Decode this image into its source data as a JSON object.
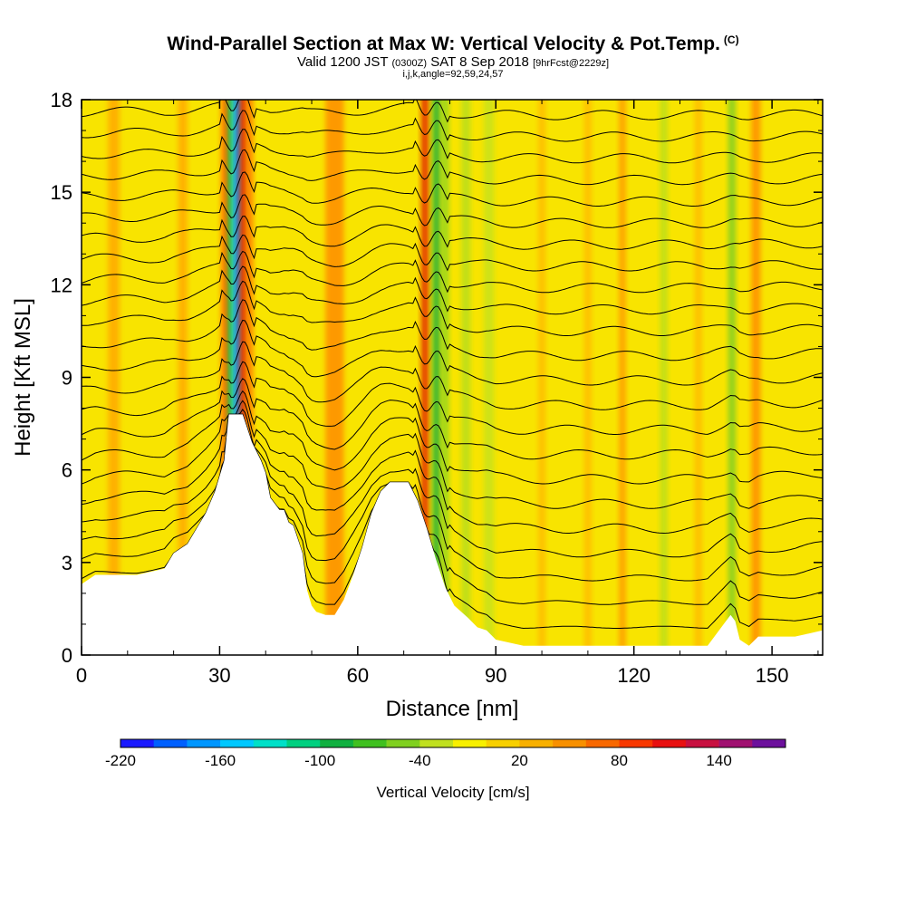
{
  "header": {
    "title": "Wind-Parallel Section at Max W: Vertical Velocity & Pot.Temp.",
    "title_mark": "(C)",
    "valid_prefix": "Valid 1200 JST",
    "valid_zulu": "(0300Z)",
    "valid_date": "SAT 8 Sep 2018",
    "forecast": "[9hrFcst@2229z]",
    "grid_info": "i,j,k,angle=92,59,24,57"
  },
  "chart_data": {
    "type": "heatmap",
    "xlabel": "Distance [nm]",
    "ylabel": "Height [Kft MSL]",
    "xlim": [
      0,
      161
    ],
    "ylim": [
      0,
      18
    ],
    "x_ticks": [
      "0",
      "30",
      "60",
      "90",
      "120",
      "150"
    ],
    "x_tick_values": [
      0,
      30,
      60,
      90,
      120,
      150
    ],
    "y_ticks": [
      "0",
      "3",
      "6",
      "9",
      "12",
      "15",
      "18"
    ],
    "y_tick_values": [
      0,
      3,
      6,
      9,
      12,
      15,
      18
    ],
    "background_fill": "#f8e400",
    "terrain": [
      [
        0,
        2.3
      ],
      [
        3,
        2.6
      ],
      [
        6,
        2.6
      ],
      [
        12,
        2.6
      ],
      [
        18,
        2.8
      ],
      [
        20,
        3.3
      ],
      [
        23,
        3.6
      ],
      [
        25,
        4.1
      ],
      [
        27,
        4.6
      ],
      [
        29,
        5.3
      ],
      [
        31,
        6.3
      ],
      [
        32,
        7.8
      ],
      [
        35,
        7.8
      ],
      [
        37,
        6.9
      ],
      [
        39,
        6.3
      ],
      [
        40,
        5.9
      ],
      [
        41,
        5.1
      ],
      [
        43,
        4.7
      ],
      [
        44,
        4.7
      ],
      [
        45,
        4.3
      ],
      [
        46,
        4.2
      ],
      [
        48,
        3.3
      ],
      [
        49,
        2.1
      ],
      [
        50,
        1.6
      ],
      [
        51,
        1.4
      ],
      [
        53,
        1.3
      ],
      [
        55,
        1.3
      ],
      [
        57,
        1.8
      ],
      [
        59,
        2.6
      ],
      [
        61,
        3.5
      ],
      [
        63,
        4.6
      ],
      [
        65,
        5.3
      ],
      [
        67,
        5.6
      ],
      [
        69,
        5.6
      ],
      [
        71,
        5.6
      ],
      [
        73,
        5.0
      ],
      [
        75,
        4.1
      ],
      [
        77,
        3.1
      ],
      [
        79,
        2.2
      ],
      [
        81,
        1.6
      ],
      [
        84,
        1.2
      ],
      [
        86,
        0.9
      ],
      [
        88,
        0.8
      ],
      [
        90,
        0.5
      ],
      [
        93,
        0.4
      ],
      [
        96,
        0.3
      ],
      [
        110,
        0.3
      ],
      [
        125,
        0.3
      ],
      [
        136,
        0.3
      ],
      [
        140,
        1.1
      ],
      [
        141,
        1.3
      ],
      [
        142,
        1.1
      ],
      [
        143,
        0.5
      ],
      [
        145,
        0.3
      ],
      [
        147,
        0.6
      ],
      [
        151,
        0.6
      ],
      [
        155,
        0.6
      ],
      [
        158,
        0.7
      ],
      [
        161,
        0.8
      ]
    ],
    "velocity_bands": [
      {
        "x": 31.5,
        "w": 2.4,
        "color": "#ff6a00"
      },
      {
        "x": 32.6,
        "w": 1.8,
        "color": "#19b83a"
      },
      {
        "x": 33.4,
        "w": 1.6,
        "color": "#1fd6e8"
      },
      {
        "x": 34.1,
        "w": 1.2,
        "color": "#1f5ae8"
      },
      {
        "x": 35.2,
        "w": 1.6,
        "color": "#e11a00"
      },
      {
        "x": 36.6,
        "w": 1.4,
        "color": "#ff7700"
      },
      {
        "x": 74.6,
        "w": 1.6,
        "color": "#e11a00"
      },
      {
        "x": 77.1,
        "w": 1.8,
        "color": "#22b03a"
      },
      {
        "x": 79.0,
        "w": 1.6,
        "color": "#8fd520"
      },
      {
        "x": 83.5,
        "w": 2.0,
        "color": "#b8de1e"
      },
      {
        "x": 88.5,
        "w": 2.2,
        "color": "#c6e21a"
      },
      {
        "x": 126.5,
        "w": 1.6,
        "color": "#b8de1e"
      },
      {
        "x": 141.3,
        "w": 1.6,
        "color": "#7ccd26"
      },
      {
        "x": 146.5,
        "w": 2.0,
        "color": "#ff8c00"
      },
      {
        "x": 7.0,
        "w": 2.5,
        "color": "#ffa800"
      },
      {
        "x": 22.0,
        "w": 2.0,
        "color": "#ffa800"
      },
      {
        "x": 55.0,
        "w": 4.0,
        "color": "#ff8c00"
      },
      {
        "x": 100.0,
        "w": 1.5,
        "color": "#ffb800"
      },
      {
        "x": 110.0,
        "w": 1.5,
        "color": "#ffb800"
      },
      {
        "x": 117.5,
        "w": 1.5,
        "color": "#ff9a00"
      },
      {
        "x": 134.0,
        "w": 1.5,
        "color": "#ffb800"
      }
    ],
    "theta_levels_kft": [
      0.9,
      1.7,
      2.5,
      3.3,
      4.1,
      4.9,
      5.7,
      6.5,
      7.3,
      8.1,
      8.9,
      9.7,
      10.5,
      11.2,
      11.9,
      12.6,
      13.3,
      14.0,
      14.7,
      15.4,
      16.1,
      16.8,
      17.5
    ],
    "colorbar": {
      "title": "Vertical Velocity [cm/s]",
      "labels": [
        "-220",
        "-160",
        "-100",
        "-40",
        "20",
        "80",
        "140"
      ],
      "label_values": [
        -220,
        -160,
        -100,
        -40,
        20,
        80,
        140
      ],
      "min": -220,
      "step": 20,
      "colors": [
        "#1a1aff",
        "#0060ff",
        "#0096ff",
        "#00c8ff",
        "#00e0c8",
        "#00d080",
        "#10b040",
        "#40c020",
        "#80d020",
        "#c0e020",
        "#f8f000",
        "#f8d000",
        "#f8b000",
        "#f89000",
        "#f86800",
        "#f83800",
        "#e81010",
        "#c81040",
        "#a01070",
        "#6c109c"
      ]
    }
  }
}
